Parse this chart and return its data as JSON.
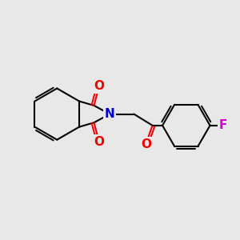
{
  "background_color": "#e8e8e8",
  "bond_color": "#000000",
  "nitrogen_color": "#0000cc",
  "oxygen_color": "#ee0000",
  "fluorine_color": "#cc00cc",
  "bond_width": 1.5,
  "figsize": [
    3.0,
    3.0
  ],
  "dpi": 100,
  "xlim": [
    0,
    10
  ],
  "ylim": [
    0,
    10
  ]
}
